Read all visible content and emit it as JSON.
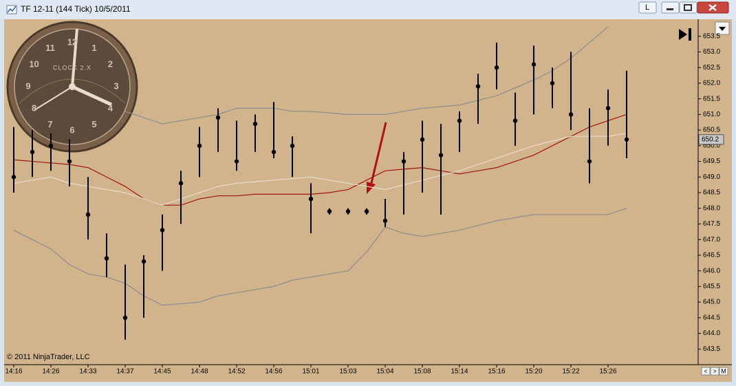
{
  "window": {
    "title": "TF 12-11 (144 Tick)  10/5/2011",
    "buttons": [
      "L"
    ],
    "scroll_buttons": [
      "<",
      ">",
      "M"
    ]
  },
  "clock": {
    "label": "CLOCK 2.X",
    "numbers": [
      "12",
      "1",
      "2",
      "3",
      "4",
      "5",
      "6",
      "7",
      "8",
      "9",
      "10",
      "11"
    ]
  },
  "chart_data": {
    "type": "ohlc",
    "annotation": "© 2011 NinjaTrader, LLC",
    "categories": [
      "14:16",
      null,
      "14:26",
      null,
      "14:33",
      null,
      "14:37",
      null,
      "14:45",
      null,
      "14:48",
      null,
      "14:52",
      null,
      "14:56",
      null,
      "15:01",
      null,
      "15:03",
      null,
      "15:04",
      null,
      "15:08",
      null,
      "15:14",
      null,
      "15:16",
      null,
      "15:20",
      null,
      "15:22",
      null,
      "15:26",
      null
    ],
    "high": [
      650.6,
      650.5,
      650.4,
      650.2,
      649.0,
      647.2,
      646.2,
      646.5,
      647.8,
      649.2,
      650.6,
      651.2,
      650.8,
      651.0,
      651.4,
      650.3,
      648.8,
      648.0,
      648.0,
      648.0,
      648.3,
      649.8,
      650.8,
      650.7,
      651.1,
      652.3,
      653.3,
      651.7,
      653.2,
      652.5,
      653.0,
      651.2,
      651.8,
      652.4
    ],
    "low": [
      648.5,
      649.0,
      649.2,
      648.7,
      647.0,
      645.8,
      643.8,
      644.5,
      646.0,
      647.5,
      649.0,
      649.8,
      649.2,
      649.8,
      649.6,
      649.0,
      647.2,
      647.8,
      647.8,
      647.8,
      647.4,
      647.8,
      648.5,
      647.8,
      649.8,
      650.7,
      651.8,
      650.0,
      651.0,
      651.2,
      650.5,
      648.8,
      650.0,
      649.6
    ],
    "close": [
      649.0,
      649.8,
      650.0,
      649.5,
      647.8,
      646.4,
      644.5,
      646.3,
      647.3,
      648.8,
      650.0,
      650.9,
      649.5,
      650.7,
      649.8,
      650.0,
      648.3,
      647.9,
      647.9,
      647.9,
      647.6,
      649.5,
      650.2,
      649.7,
      650.8,
      651.9,
      652.5,
      650.8,
      652.6,
      652.0,
      651.0,
      649.5,
      651.2,
      650.2
    ],
    "bar_color": "#000000",
    "lines": [
      {
        "color": "#8c8c8c",
        "values": [
          null,
          null,
          null,
          null,
          null,
          null,
          651.1,
          650.9,
          650.7,
          650.8,
          650.9,
          651.0,
          651.2,
          651.2,
          651.2,
          651.1,
          651.1,
          651.05,
          651.0,
          651.0,
          651.0,
          651.1,
          651.2,
          651.25,
          651.3,
          651.45,
          651.6,
          651.85,
          652.1,
          652.4,
          652.8,
          653.3,
          653.8,
          null
        ]
      },
      {
        "color": "#8c8c8c",
        "values": [
          647.3,
          647.0,
          646.7,
          646.2,
          645.9,
          645.8,
          645.6,
          645.2,
          644.9,
          644.95,
          645.0,
          645.2,
          645.3,
          645.4,
          645.5,
          645.7,
          645.8,
          645.9,
          646.0,
          646.6,
          647.4,
          647.2,
          647.1,
          647.2,
          647.3,
          647.45,
          647.6,
          647.7,
          647.8,
          647.8,
          647.8,
          647.8,
          647.8,
          648.0
        ]
      },
      {
        "color": "#a0140c",
        "values": [
          649.55,
          649.5,
          649.45,
          649.4,
          649.3,
          649.0,
          648.7,
          648.3,
          648.1,
          648.1,
          648.3,
          648.4,
          648.4,
          648.45,
          648.45,
          648.45,
          648.45,
          648.5,
          648.6,
          648.9,
          649.2,
          649.25,
          649.3,
          649.2,
          649.1,
          649.2,
          649.3,
          649.5,
          649.7,
          650.0,
          650.3,
          650.6,
          650.8,
          651.0
        ]
      },
      {
        "color": "#e6dccd",
        "values": [
          648.8,
          648.9,
          649.0,
          648.8,
          648.7,
          648.6,
          648.5,
          648.3,
          648.1,
          648.3,
          648.5,
          648.7,
          648.8,
          648.85,
          648.9,
          648.95,
          649.0,
          648.9,
          648.8,
          648.7,
          648.6,
          648.75,
          648.9,
          649.05,
          649.2,
          649.4,
          649.6,
          649.8,
          650.0,
          650.15,
          650.3,
          650.3,
          650.3,
          650.4
        ]
      }
    ],
    "last_price": 650.2,
    "ylim": [
      643.0,
      654.0
    ],
    "yticks": [
      {
        "value": 643.5,
        "label": "643.5"
      },
      {
        "value": 644,
        "label": "644.0"
      },
      644.5,
      {
        "value": 645,
        "label": "645.0"
      },
      645.5,
      {
        "value": 646,
        "label": "646.0"
      },
      646.5,
      {
        "value": 647,
        "label": "647.0"
      },
      647.5,
      {
        "value": 648,
        "label": "648.0"
      },
      648.5,
      {
        "value": 649,
        "label": "649.0"
      },
      649.5,
      {
        "value": 650,
        "label": "650.0"
      },
      650.5,
      {
        "value": 651,
        "label": "651.0"
      },
      651.5,
      {
        "value": 652,
        "label": "652.0"
      },
      652.5,
      {
        "value": 653,
        "label": "653.0"
      },
      653.5
    ],
    "grid": false,
    "background": "#d2b48c"
  }
}
